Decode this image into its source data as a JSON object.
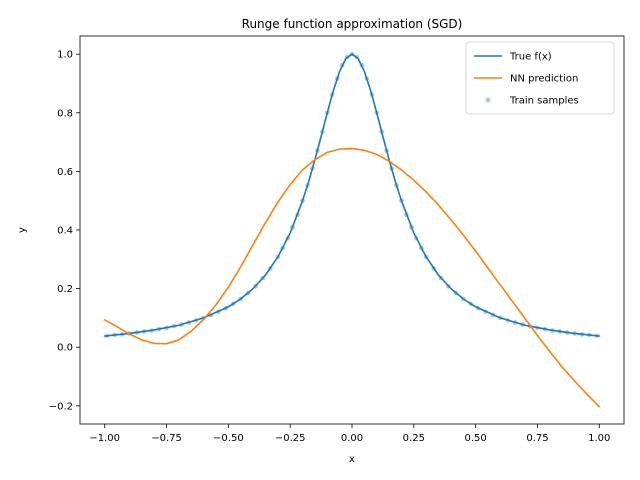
{
  "chart_data": {
    "type": "line",
    "title": "Runge function approximation (SGD)",
    "xlabel": "x",
    "ylabel": "y",
    "xlim": [
      -1.1,
      1.1
    ],
    "ylim": [
      -0.262,
      1.062
    ],
    "xticks": [
      -1.0,
      -0.75,
      -0.5,
      -0.25,
      0.0,
      0.25,
      0.5,
      0.75,
      1.0
    ],
    "xtick_labels": [
      "−1.00",
      "−0.75",
      "−0.50",
      "−0.25",
      "0.00",
      "0.25",
      "0.50",
      "0.75",
      "1.00"
    ],
    "yticks": [
      -0.2,
      0.0,
      0.2,
      0.4,
      0.6,
      0.8,
      1.0
    ],
    "ytick_labels": [
      "−0.2",
      "0.0",
      "0.2",
      "0.4",
      "0.6",
      "0.8",
      "1.0"
    ],
    "grid": false,
    "legend_position": "top-right",
    "series": [
      {
        "name": "True f(x)",
        "kind": "line",
        "color": "#1f77b4",
        "x": [
          -1.0,
          -0.9,
          -0.8,
          -0.7,
          -0.6,
          -0.5,
          -0.45,
          -0.4,
          -0.35,
          -0.3,
          -0.25,
          -0.2,
          -0.175,
          -0.15,
          -0.125,
          -0.1,
          -0.075,
          -0.05,
          -0.025,
          0.0,
          0.025,
          0.05,
          0.075,
          0.1,
          0.125,
          0.15,
          0.175,
          0.2,
          0.25,
          0.3,
          0.35,
          0.4,
          0.45,
          0.5,
          0.6,
          0.7,
          0.8,
          0.9,
          1.0
        ],
        "y": [
          0.038,
          0.047,
          0.059,
          0.075,
          0.1,
          0.138,
          0.165,
          0.2,
          0.246,
          0.308,
          0.39,
          0.5,
          0.566,
          0.64,
          0.719,
          0.8,
          0.877,
          0.941,
          0.985,
          1.0,
          0.985,
          0.941,
          0.877,
          0.8,
          0.719,
          0.64,
          0.566,
          0.5,
          0.39,
          0.308,
          0.246,
          0.2,
          0.165,
          0.138,
          0.1,
          0.075,
          0.059,
          0.047,
          0.038
        ]
      },
      {
        "name": "NN prediction",
        "kind": "line",
        "color": "#ff7f0e",
        "x": [
          -1.0,
          -0.95,
          -0.9,
          -0.85,
          -0.8,
          -0.75,
          -0.7,
          -0.65,
          -0.6,
          -0.55,
          -0.5,
          -0.45,
          -0.4,
          -0.35,
          -0.3,
          -0.25,
          -0.2,
          -0.15,
          -0.1,
          -0.05,
          0.0,
          0.05,
          0.1,
          0.15,
          0.2,
          0.25,
          0.3,
          0.35,
          0.4,
          0.45,
          0.5,
          0.55,
          0.6,
          0.65,
          0.7,
          0.75,
          0.8,
          0.85,
          0.9,
          0.95,
          1.0
        ],
        "y": [
          0.093,
          0.07,
          0.045,
          0.025,
          0.013,
          0.012,
          0.025,
          0.055,
          0.095,
          0.145,
          0.205,
          0.275,
          0.35,
          0.425,
          0.495,
          0.555,
          0.605,
          0.64,
          0.665,
          0.676,
          0.678,
          0.672,
          0.658,
          0.635,
          0.605,
          0.57,
          0.53,
          0.485,
          0.435,
          0.383,
          0.328,
          0.27,
          0.212,
          0.155,
          0.098,
          0.04,
          -0.015,
          -0.068,
          -0.115,
          -0.16,
          -0.203
        ]
      },
      {
        "name": "Train samples",
        "kind": "scatter",
        "color": "#1f77b4",
        "alpha": 0.4,
        "x": [
          -0.99,
          -0.96,
          -0.93,
          -0.9,
          -0.87,
          -0.84,
          -0.81,
          -0.78,
          -0.75,
          -0.72,
          -0.69,
          -0.66,
          -0.63,
          -0.6,
          -0.57,
          -0.54,
          -0.51,
          -0.48,
          -0.45,
          -0.42,
          -0.39,
          -0.36,
          -0.33,
          -0.3,
          -0.28,
          -0.26,
          -0.24,
          -0.22,
          -0.2,
          -0.18,
          -0.16,
          -0.14,
          -0.12,
          -0.1,
          -0.08,
          -0.06,
          -0.04,
          -0.02,
          0.0,
          0.02,
          0.04,
          0.06,
          0.08,
          0.1,
          0.12,
          0.14,
          0.16,
          0.18,
          0.2,
          0.22,
          0.24,
          0.26,
          0.28,
          0.3,
          0.33,
          0.36,
          0.39,
          0.42,
          0.45,
          0.48,
          0.51,
          0.54,
          0.57,
          0.6,
          0.63,
          0.66,
          0.69,
          0.72,
          0.75,
          0.78,
          0.81,
          0.84,
          0.87,
          0.9,
          0.93,
          0.96,
          0.99
        ],
        "y": [
          0.039,
          0.042,
          0.044,
          0.047,
          0.05,
          0.054,
          0.057,
          0.062,
          0.066,
          0.072,
          0.077,
          0.084,
          0.092,
          0.1,
          0.11,
          0.121,
          0.133,
          0.148,
          0.165,
          0.185,
          0.208,
          0.236,
          0.269,
          0.308,
          0.338,
          0.372,
          0.41,
          0.452,
          0.5,
          0.552,
          0.61,
          0.671,
          0.735,
          0.8,
          0.862,
          0.917,
          0.962,
          0.99,
          1.0,
          0.99,
          0.962,
          0.917,
          0.862,
          0.8,
          0.735,
          0.671,
          0.61,
          0.552,
          0.5,
          0.452,
          0.41,
          0.372,
          0.338,
          0.308,
          0.269,
          0.236,
          0.208,
          0.185,
          0.165,
          0.148,
          0.133,
          0.121,
          0.11,
          0.1,
          0.092,
          0.084,
          0.077,
          0.072,
          0.066,
          0.062,
          0.057,
          0.054,
          0.05,
          0.047,
          0.044,
          0.042,
          0.039
        ]
      }
    ]
  }
}
